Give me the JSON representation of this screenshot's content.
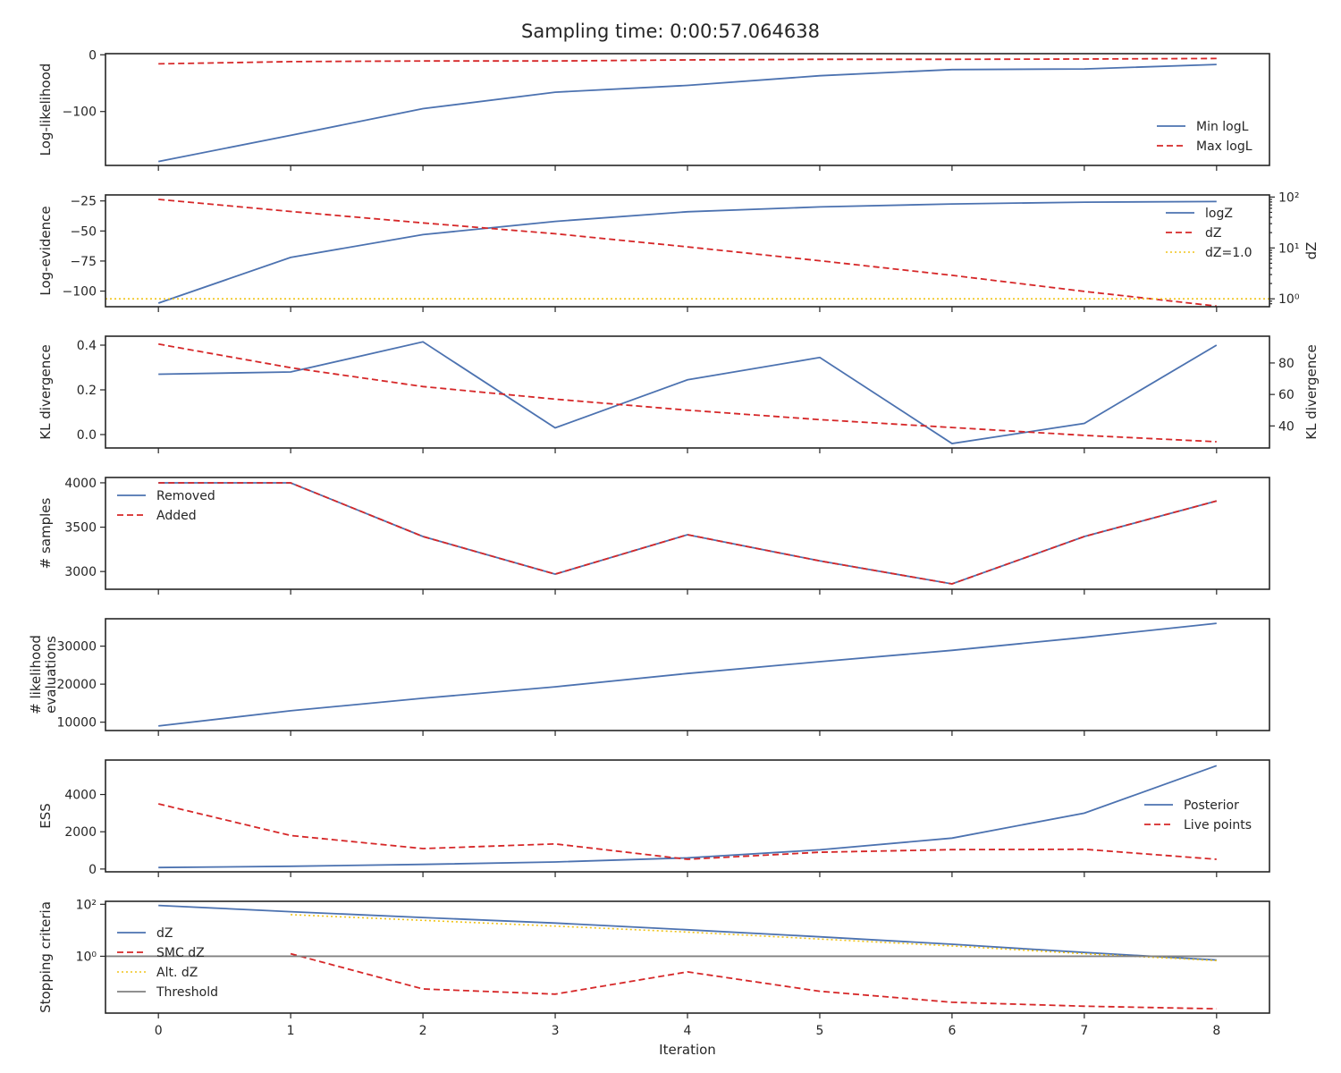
{
  "title": "Sampling time: 0:00:57.064638",
  "colors": {
    "blue": "#4c72b0",
    "red": "#d62728",
    "yellow": "#f0c419",
    "gray": "#808080",
    "axis": "#262626"
  },
  "chart_data": [
    {
      "type": "line",
      "ylabel": "Log-likelihood",
      "x": [
        0,
        1,
        2,
        3,
        4,
        5,
        6,
        7,
        8
      ],
      "ylim": [
        -195,
        2
      ],
      "yticks": [
        0,
        -100
      ],
      "yticklabels": [
        "0",
        "−100"
      ],
      "legend": "bottom-right",
      "series": [
        {
          "name": "Min logL",
          "style": "solid",
          "color": "blue",
          "values": [
            -188,
            -142,
            -95,
            -66,
            -54,
            -37,
            -26,
            -25,
            -17
          ]
        },
        {
          "name": "Max logL",
          "style": "dashed",
          "color": "red",
          "values": [
            -16,
            -12,
            -11,
            -11,
            -9,
            -8,
            -8,
            -7.5,
            -6.5
          ]
        }
      ]
    },
    {
      "type": "line",
      "ylabel": "Log-evidence",
      "ylabel_right": "dZ",
      "x": [
        0,
        1,
        2,
        3,
        4,
        5,
        6,
        7,
        8
      ],
      "ylim": [
        -113,
        -20
      ],
      "yticks": [
        -25,
        -50,
        -75,
        -100
      ],
      "yticklabels": [
        "−25",
        "−50",
        "−75",
        "−100"
      ],
      "right_scale": "log",
      "right_ylim": [
        0.7,
        110
      ],
      "right_yticks": [
        1,
        10,
        100
      ],
      "right_yticklabels": [
        "10⁰",
        "10¹",
        "10²"
      ],
      "legend": "top-right",
      "series": [
        {
          "name": "logZ",
          "style": "solid",
          "color": "blue",
          "axis": "left",
          "values": [
            -110,
            -72,
            -53,
            -42,
            -34,
            -30,
            -27.5,
            -26,
            -25.5
          ]
        },
        {
          "name": "dZ",
          "style": "dashed",
          "color": "red",
          "axis": "right",
          "values": [
            90,
            52,
            31,
            19,
            10.5,
            5.6,
            2.9,
            1.4,
            0.72
          ]
        },
        {
          "name": "dZ=1.0",
          "style": "dotted",
          "color": "yellow",
          "axis": "right",
          "hline": 1.0
        }
      ]
    },
    {
      "type": "line",
      "ylabel": "KL divergence",
      "ylabel_right": "KL divergence",
      "x": [
        0,
        1,
        2,
        3,
        4,
        5,
        6,
        7,
        8
      ],
      "ylim": [
        -0.06,
        0.44
      ],
      "yticks": [
        0.0,
        0.2,
        0.4
      ],
      "yticklabels": [
        "0.0",
        "0.2",
        "0.4"
      ],
      "right_ylim": [
        26,
        97
      ],
      "right_yticks": [
        40,
        60,
        80
      ],
      "right_yticklabels": [
        "40",
        "60",
        "80"
      ],
      "series": [
        {
          "name": "",
          "style": "solid",
          "color": "blue",
          "axis": "left",
          "values": [
            0.27,
            0.28,
            0.415,
            0.03,
            0.245,
            0.345,
            -0.04,
            0.05,
            0.4
          ]
        },
        {
          "name": "",
          "style": "dashed",
          "color": "red",
          "axis": "right",
          "values": [
            92,
            77,
            65,
            57,
            50,
            44,
            39,
            34,
            30
          ]
        }
      ]
    },
    {
      "type": "line",
      "ylabel": "# samples",
      "x": [
        0,
        1,
        2,
        3,
        4,
        5,
        6,
        7,
        8
      ],
      "ylim": [
        2800,
        4060
      ],
      "yticks": [
        3000,
        3500,
        4000
      ],
      "yticklabels": [
        "3000",
        "3500",
        "4000"
      ],
      "legend": "top-left",
      "series": [
        {
          "name": "Removed",
          "style": "solid",
          "color": "blue",
          "values": [
            4000,
            4000,
            3395,
            2970,
            3415,
            3120,
            2860,
            3395,
            3795
          ]
        },
        {
          "name": "Added",
          "style": "dashed",
          "color": "red",
          "values": [
            4000,
            4000,
            3395,
            2970,
            3415,
            3120,
            2860,
            3395,
            3795
          ]
        }
      ]
    },
    {
      "type": "line",
      "ylabel": "# likelihood\nevaluations",
      "x": [
        0,
        1,
        2,
        3,
        4,
        5,
        6,
        7,
        8
      ],
      "ylim": [
        7800,
        37200
      ],
      "yticks": [
        10000,
        20000,
        30000
      ],
      "yticklabels": [
        "10000",
        "20000",
        "30000"
      ],
      "series": [
        {
          "name": "",
          "style": "solid",
          "color": "blue",
          "values": [
            9000,
            13000,
            16300,
            19300,
            22800,
            25900,
            28900,
            32300,
            36000
          ]
        }
      ]
    },
    {
      "type": "line",
      "ylabel": "ESS",
      "x": [
        0,
        1,
        2,
        3,
        4,
        5,
        6,
        7,
        8
      ],
      "ylim": [
        -150,
        5850
      ],
      "yticks": [
        0,
        2000,
        4000
      ],
      "yticklabels": [
        "0",
        "2000",
        "4000"
      ],
      "legend": "center-right",
      "series": [
        {
          "name": "Posterior",
          "style": "solid",
          "color": "blue",
          "values": [
            80,
            150,
            250,
            380,
            600,
            1030,
            1660,
            3000,
            5550
          ]
        },
        {
          "name": "Live points",
          "style": "dashed",
          "color": "red",
          "values": [
            3500,
            1800,
            1100,
            1350,
            520,
            900,
            1040,
            1060,
            520
          ]
        }
      ]
    },
    {
      "type": "line",
      "ylabel": "Stopping criteria",
      "xlabel": "Iteration",
      "x": [
        0,
        1,
        2,
        3,
        4,
        5,
        6,
        7,
        8
      ],
      "xticklabels": [
        "0",
        "1",
        "2",
        "3",
        "4",
        "5",
        "6",
        "7",
        "8"
      ],
      "yscale": "log",
      "ylim": [
        0.0065,
        130
      ],
      "yticks": [
        1,
        100
      ],
      "yticklabels": [
        "10⁰",
        "10²"
      ],
      "legend": "center-left",
      "series": [
        {
          "name": "dZ",
          "style": "solid",
          "color": "blue",
          "values": [
            90,
            52,
            31,
            19,
            10.5,
            5.6,
            2.9,
            1.4,
            0.72
          ]
        },
        {
          "name": "SMC dZ",
          "style": "dashed",
          "color": "red",
          "x": [
            1,
            2,
            3,
            4,
            5,
            6,
            7,
            8
          ],
          "values": [
            1.25,
            0.055,
            0.035,
            0.25,
            0.045,
            0.017,
            0.012,
            0.0095
          ]
        },
        {
          "name": "Alt. dZ",
          "style": "dotted",
          "color": "yellow",
          "x": [
            1,
            2,
            3,
            4,
            5,
            6,
            7,
            8
          ],
          "values": [
            40,
            24,
            14.5,
            8.5,
            4.6,
            2.5,
            1.25,
            0.68
          ]
        },
        {
          "name": "Threshold",
          "style": "solid",
          "color": "gray",
          "hline": 1.0
        }
      ]
    }
  ]
}
